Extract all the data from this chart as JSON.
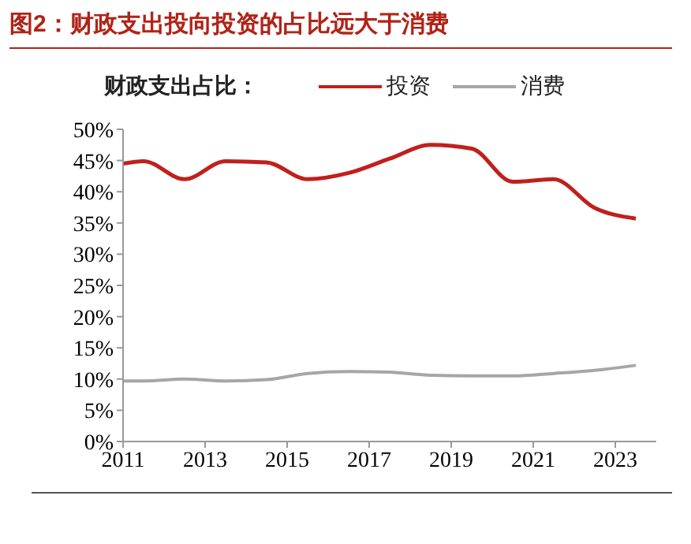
{
  "chart_data": {
    "type": "line",
    "title": "图2：财政支出投向投资的占比远大于消费",
    "legend_title": "财政支出占比：",
    "legend": "top",
    "grid": false,
    "marker": "none",
    "line_style": "solid",
    "xlim": [
      2011,
      2024
    ],
    "xticks": [
      2011,
      2013,
      2015,
      2017,
      2019,
      2021,
      2023
    ],
    "ylim": [
      0,
      50
    ],
    "yticks": [
      {
        "value": 0,
        "label": "0%"
      },
      {
        "value": 5,
        "label": "5%"
      },
      {
        "value": 10,
        "label": "10%"
      },
      {
        "value": 15,
        "label": "15%"
      },
      {
        "value": 20,
        "label": "20%"
      },
      {
        "value": 25,
        "label": "25%"
      },
      {
        "value": 30,
        "label": "30%"
      },
      {
        "value": 35,
        "label": "35%"
      },
      {
        "value": 40,
        "label": "40%"
      },
      {
        "value": 45,
        "label": "45%"
      },
      {
        "value": 50,
        "label": "50%"
      }
    ],
    "x": [
      2011,
      2011.5,
      2012.5,
      2013.5,
      2014.5,
      2015.5,
      2016.5,
      2017.5,
      2018.5,
      2019.5,
      2020.5,
      2021.5,
      2022.5,
      2023.5
    ],
    "series": [
      {
        "name": "投资",
        "color": "#c0201c",
        "values": [
          44.5,
          44.9,
          42.0,
          44.9,
          44.7,
          42.0,
          43.0,
          45.3,
          47.5,
          46.9,
          41.6,
          42.0,
          37.4,
          35.7
        ]
      },
      {
        "name": "消费",
        "color": "#a6a6a6",
        "values": [
          9.7,
          9.7,
          10.0,
          9.7,
          9.9,
          10.9,
          11.2,
          11.1,
          10.6,
          10.5,
          10.5,
          10.9,
          11.4,
          12.2
        ]
      }
    ]
  }
}
